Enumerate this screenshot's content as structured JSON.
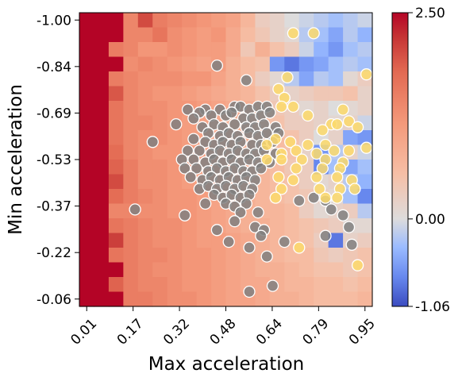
{
  "chart_data": {
    "type": "heatmap",
    "xlabel": "Max acceleration",
    "ylabel": "Min acceleration",
    "x_tick_labels": [
      "0.01",
      "0.17",
      "0.32",
      "0.48",
      "0.64",
      "0.79",
      "0.95"
    ],
    "y_tick_labels": [
      "-1.00",
      "-0.84",
      "-0.69",
      "-0.53",
      "-0.37",
      "-0.22",
      "-0.06"
    ],
    "colorbar": {
      "min": -1.06,
      "max": 2.5,
      "center": 0.0,
      "tick_labels": [
        "2.50",
        "0.00",
        "-1.06"
      ],
      "colormap": "coolwarm"
    },
    "grid": false,
    "grid_rows": 20,
    "grid_cols": 20,
    "x_range": [
      0.0,
      1.0
    ],
    "y_range": [
      -1.0,
      0.0
    ],
    "cells": [
      [
        2.5,
        2.5,
        2.5,
        1.4,
        2.0,
        1.5,
        1.4,
        1.3,
        1.2,
        1.1,
        1.0,
        0.7,
        0.3,
        0.2,
        0.0,
        -0.1,
        -0.2,
        -0.3,
        -0.2,
        -0.1
      ],
      [
        2.5,
        2.5,
        2.5,
        1.4,
        1.4,
        1.6,
        1.3,
        1.2,
        1.1,
        1.2,
        0.9,
        0.6,
        0.4,
        0.2,
        0.1,
        -0.2,
        -0.3,
        -0.5,
        -0.2,
        -0.4
      ],
      [
        2.5,
        2.5,
        1.5,
        1.4,
        1.2,
        1.2,
        1.3,
        1.2,
        1.1,
        1.1,
        0.9,
        0.4,
        0.8,
        0.5,
        0.3,
        -0.1,
        -0.4,
        -0.6,
        -0.3,
        -0.2
      ],
      [
        2.5,
        2.5,
        2.5,
        1.3,
        1.4,
        1.3,
        1.2,
        1.1,
        1.0,
        1.1,
        0.8,
        0.6,
        0.5,
        -0.6,
        -0.8,
        -0.6,
        -0.5,
        -0.3,
        -0.2,
        -0.3
      ],
      [
        2.5,
        2.5,
        1.5,
        1.4,
        1.3,
        1.3,
        1.3,
        1.2,
        1.2,
        1.0,
        0.8,
        0.6,
        0.3,
        0.1,
        -0.2,
        -0.5,
        -0.2,
        -0.3,
        0.1,
        0.3
      ],
      [
        2.5,
        2.5,
        1.9,
        1.4,
        1.3,
        1.2,
        1.2,
        1.1,
        1.0,
        0.9,
        0.8,
        0.7,
        0.5,
        0.3,
        0.2,
        0.3,
        0.4,
        0.4,
        0.5,
        0.2
      ],
      [
        2.5,
        2.5,
        1.6,
        1.4,
        1.3,
        1.3,
        1.2,
        1.2,
        1.1,
        1.0,
        0.9,
        0.8,
        0.6,
        0.4,
        0.3,
        0.1,
        0.2,
        0.0,
        0.1,
        0.2
      ],
      [
        2.5,
        2.5,
        1.6,
        1.4,
        1.4,
        1.3,
        1.2,
        1.1,
        1.0,
        0.9,
        0.8,
        0.7,
        0.6,
        0.5,
        0.3,
        0.3,
        0.2,
        0.1,
        0.2,
        -0.1
      ],
      [
        2.5,
        2.5,
        1.6,
        1.4,
        1.3,
        1.3,
        1.2,
        1.1,
        1.0,
        0.9,
        0.9,
        0.8,
        0.7,
        0.6,
        0.5,
        0.3,
        0.0,
        0.2,
        -0.5,
        -0.6
      ],
      [
        2.5,
        2.5,
        1.7,
        1.4,
        1.3,
        1.2,
        1.2,
        1.1,
        1.0,
        0.9,
        0.9,
        0.8,
        0.7,
        0.6,
        0.5,
        0.2,
        -0.6,
        -0.2,
        0.2,
        -0.1
      ],
      [
        2.5,
        2.5,
        1.8,
        1.5,
        1.3,
        1.3,
        1.2,
        1.1,
        1.0,
        1.0,
        0.9,
        0.8,
        0.7,
        0.6,
        0.4,
        0.3,
        -0.7,
        -0.3,
        -0.5,
        -0.3
      ],
      [
        2.5,
        2.5,
        2.0,
        1.5,
        1.3,
        1.3,
        1.2,
        1.1,
        1.0,
        1.0,
        0.9,
        0.8,
        0.7,
        0.6,
        0.5,
        0.3,
        0.1,
        0.2,
        -0.2,
        -0.4
      ],
      [
        2.5,
        2.5,
        1.7,
        1.5,
        1.4,
        1.3,
        1.2,
        1.2,
        1.1,
        1.0,
        0.9,
        0.8,
        0.7,
        0.6,
        0.5,
        0.4,
        0.2,
        0.1,
        -0.3,
        -0.7
      ],
      [
        2.5,
        2.5,
        1.4,
        1.4,
        1.3,
        1.3,
        1.2,
        1.2,
        1.1,
        1.0,
        0.9,
        0.8,
        0.7,
        0.7,
        0.6,
        0.3,
        0.1,
        0.2,
        0.3,
        -0.2
      ],
      [
        2.5,
        2.5,
        1.6,
        1.5,
        1.4,
        1.3,
        1.3,
        1.2,
        1.1,
        1.0,
        0.9,
        0.8,
        0.8,
        0.7,
        0.6,
        0.5,
        0.4,
        0.3,
        0.1,
        0.1
      ],
      [
        2.5,
        2.5,
        2.1,
        1.5,
        1.4,
        1.3,
        1.3,
        1.2,
        1.1,
        1.1,
        1.0,
        0.9,
        0.8,
        0.7,
        0.6,
        0.5,
        0.3,
        -0.8,
        0.2,
        0.3
      ],
      [
        2.5,
        2.5,
        1.6,
        1.5,
        1.4,
        1.4,
        1.3,
        1.2,
        1.2,
        1.1,
        1.0,
        0.9,
        0.8,
        0.7,
        0.6,
        0.6,
        0.4,
        0.3,
        0.4,
        0.5
      ],
      [
        2.5,
        2.5,
        2.5,
        1.5,
        1.4,
        1.3,
        1.3,
        1.2,
        1.2,
        1.1,
        1.0,
        0.9,
        0.8,
        0.8,
        0.7,
        0.6,
        0.5,
        0.5,
        0.4,
        0.5
      ],
      [
        2.5,
        2.5,
        1.8,
        1.5,
        1.4,
        1.4,
        1.3,
        1.2,
        1.2,
        1.1,
        1.0,
        0.9,
        0.9,
        0.8,
        0.7,
        0.7,
        0.6,
        0.6,
        0.5,
        0.6
      ],
      [
        2.5,
        2.5,
        2.5,
        1.5,
        1.5,
        1.4,
        1.3,
        1.3,
        1.2,
        1.1,
        1.0,
        1.0,
        0.9,
        0.8,
        0.8,
        0.7,
        0.6,
        0.6,
        0.6,
        0.7
      ]
    ],
    "scatter_gray": {
      "color": "#808080",
      "points": [
        [
          0.47,
          -0.82
        ],
        [
          0.57,
          -0.77
        ],
        [
          0.43,
          -0.67
        ],
        [
          0.48,
          -0.67
        ],
        [
          0.53,
          -0.68
        ],
        [
          0.55,
          -0.68
        ],
        [
          0.58,
          -0.67
        ],
        [
          0.61,
          -0.68
        ],
        [
          0.64,
          -0.68
        ],
        [
          0.37,
          -0.67
        ],
        [
          0.41,
          -0.66
        ],
        [
          0.39,
          -0.64
        ],
        [
          0.45,
          -0.65
        ],
        [
          0.5,
          -0.65
        ],
        [
          0.52,
          -0.66
        ],
        [
          0.56,
          -0.64
        ],
        [
          0.59,
          -0.64
        ],
        [
          0.62,
          -0.65
        ],
        [
          0.65,
          -0.66
        ],
        [
          0.33,
          -0.62
        ],
        [
          0.42,
          -0.61
        ],
        [
          0.46,
          -0.62
        ],
        [
          0.49,
          -0.61
        ],
        [
          0.53,
          -0.62
        ],
        [
          0.57,
          -0.61
        ],
        [
          0.6,
          -0.61
        ],
        [
          0.63,
          -0.62
        ],
        [
          0.67,
          -0.61
        ],
        [
          0.44,
          -0.59
        ],
        [
          0.48,
          -0.58
        ],
        [
          0.51,
          -0.59
        ],
        [
          0.54,
          -0.58
        ],
        [
          0.58,
          -0.59
        ],
        [
          0.61,
          -0.58
        ],
        [
          0.64,
          -0.59
        ],
        [
          0.68,
          -0.59
        ],
        [
          0.25,
          -0.56
        ],
        [
          0.39,
          -0.57
        ],
        [
          0.43,
          -0.56
        ],
        [
          0.46,
          -0.55
        ],
        [
          0.49,
          -0.56
        ],
        [
          0.52,
          -0.55
        ],
        [
          0.55,
          -0.56
        ],
        [
          0.59,
          -0.55
        ],
        [
          0.62,
          -0.55
        ],
        [
          0.66,
          -0.56
        ],
        [
          0.37,
          -0.53
        ],
        [
          0.41,
          -0.53
        ],
        [
          0.45,
          -0.52
        ],
        [
          0.48,
          -0.53
        ],
        [
          0.51,
          -0.52
        ],
        [
          0.54,
          -0.53
        ],
        [
          0.57,
          -0.52
        ],
        [
          0.6,
          -0.52
        ],
        [
          0.63,
          -0.53
        ],
        [
          0.67,
          -0.52
        ],
        [
          0.35,
          -0.5
        ],
        [
          0.39,
          -0.5
        ],
        [
          0.43,
          -0.49
        ],
        [
          0.46,
          -0.5
        ],
        [
          0.49,
          -0.49
        ],
        [
          0.52,
          -0.5
        ],
        [
          0.55,
          -0.49
        ],
        [
          0.58,
          -0.5
        ],
        [
          0.61,
          -0.49
        ],
        [
          0.65,
          -0.49
        ],
        [
          0.36,
          -0.47
        ],
        [
          0.4,
          -0.47
        ],
        [
          0.44,
          -0.46
        ],
        [
          0.47,
          -0.47
        ],
        [
          0.5,
          -0.46
        ],
        [
          0.53,
          -0.47
        ],
        [
          0.56,
          -0.46
        ],
        [
          0.59,
          -0.46
        ],
        [
          0.62,
          -0.47
        ],
        [
          0.38,
          -0.44
        ],
        [
          0.42,
          -0.43
        ],
        [
          0.45,
          -0.44
        ],
        [
          0.48,
          -0.43
        ],
        [
          0.51,
          -0.44
        ],
        [
          0.54,
          -0.43
        ],
        [
          0.57,
          -0.44
        ],
        [
          0.6,
          -0.43
        ],
        [
          0.41,
          -0.4
        ],
        [
          0.44,
          -0.41
        ],
        [
          0.47,
          -0.4
        ],
        [
          0.5,
          -0.41
        ],
        [
          0.53,
          -0.4
        ],
        [
          0.56,
          -0.41
        ],
        [
          0.59,
          -0.4
        ],
        [
          0.46,
          -0.38
        ],
        [
          0.49,
          -0.37
        ],
        [
          0.52,
          -0.38
        ],
        [
          0.55,
          -0.37
        ],
        [
          0.58,
          -0.38
        ],
        [
          0.43,
          -0.35
        ],
        [
          0.5,
          -0.35
        ],
        [
          0.53,
          -0.34
        ],
        [
          0.57,
          -0.35
        ],
        [
          0.19,
          -0.33
        ],
        [
          0.36,
          -0.31
        ],
        [
          0.55,
          -0.32
        ],
        [
          0.61,
          -0.32
        ],
        [
          0.53,
          -0.29
        ],
        [
          0.47,
          -0.26
        ],
        [
          0.6,
          -0.27
        ],
        [
          0.63,
          -0.26
        ],
        [
          0.51,
          -0.22
        ],
        [
          0.58,
          -0.2
        ],
        [
          0.62,
          -0.24
        ],
        [
          0.64,
          -0.17
        ],
        [
          0.75,
          -0.36
        ],
        [
          0.8,
          -0.37
        ],
        [
          0.84,
          -0.36
        ],
        [
          0.86,
          -0.33
        ],
        [
          0.9,
          -0.31
        ],
        [
          0.92,
          -0.27
        ],
        [
          0.84,
          -0.24
        ],
        [
          0.93,
          -0.21
        ],
        [
          0.58,
          -0.05
        ],
        [
          0.66,
          -0.07
        ],
        [
          0.7,
          -0.22
        ]
      ]
    },
    "scatter_yellow": {
      "color": "#fcd96b",
      "points": [
        [
          0.73,
          -0.93
        ],
        [
          0.8,
          -0.93
        ],
        [
          0.98,
          -0.79
        ],
        [
          0.71,
          -0.78
        ],
        [
          0.68,
          -0.74
        ],
        [
          0.7,
          -0.71
        ],
        [
          0.69,
          -0.68
        ],
        [
          0.73,
          -0.68
        ],
        [
          0.9,
          -0.67
        ],
        [
          0.78,
          -0.65
        ],
        [
          0.86,
          -0.62
        ],
        [
          0.88,
          -0.62
        ],
        [
          0.92,
          -0.63
        ],
        [
          0.95,
          -0.61
        ],
        [
          0.83,
          -0.6
        ],
        [
          0.67,
          -0.57
        ],
        [
          0.64,
          -0.55
        ],
        [
          0.72,
          -0.56
        ],
        [
          0.78,
          -0.55
        ],
        [
          0.84,
          -0.55
        ],
        [
          0.98,
          -0.54
        ],
        [
          0.74,
          -0.53
        ],
        [
          0.69,
          -0.52
        ],
        [
          0.81,
          -0.52
        ],
        [
          0.87,
          -0.53
        ],
        [
          0.92,
          -0.53
        ],
        [
          0.64,
          -0.5
        ],
        [
          0.69,
          -0.5
        ],
        [
          0.76,
          -0.5
        ],
        [
          0.84,
          -0.5
        ],
        [
          0.9,
          -0.49
        ],
        [
          0.74,
          -0.47
        ],
        [
          0.83,
          -0.47
        ],
        [
          0.89,
          -0.47
        ],
        [
          0.68,
          -0.44
        ],
        [
          0.73,
          -0.43
        ],
        [
          0.81,
          -0.44
        ],
        [
          0.88,
          -0.44
        ],
        [
          0.93,
          -0.43
        ],
        [
          0.69,
          -0.4
        ],
        [
          0.82,
          -0.4
        ],
        [
          0.89,
          -0.4
        ],
        [
          0.94,
          -0.4
        ],
        [
          0.67,
          -0.37
        ],
        [
          0.84,
          -0.37
        ],
        [
          0.88,
          -0.37
        ],
        [
          0.75,
          -0.2
        ],
        [
          0.95,
          -0.14
        ]
      ]
    }
  }
}
